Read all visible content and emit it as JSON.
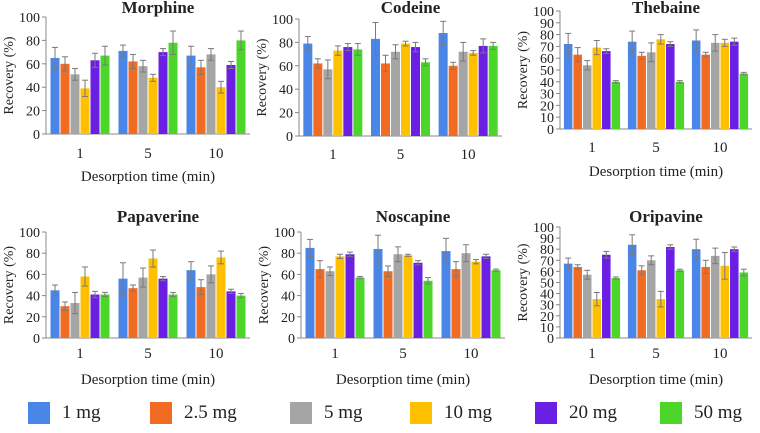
{
  "legend": [
    {
      "label": "1 mg",
      "color": "#4A86E8"
    },
    {
      "label": "2.5 mg",
      "color": "#F26B22"
    },
    {
      "label": "5 mg",
      "color": "#A5A5A5"
    },
    {
      "label": "10 mg",
      "color": "#FFC000"
    },
    {
      "label": "20 mg",
      "color": "#6A1FE3"
    },
    {
      "label": "50 mg",
      "color": "#4CD62A"
    }
  ],
  "chart_data": [
    {
      "type": "bar",
      "title": "Morphine",
      "xlabel": "Desorption time (min)",
      "ylabel": "Recovery (%)",
      "categories": [
        "1",
        "5",
        "10"
      ],
      "ylim": [
        0,
        100
      ],
      "yticks": [
        0,
        20,
        40,
        60,
        80,
        100
      ],
      "series": [
        {
          "name": "1 mg",
          "values": [
            65,
            71,
            67
          ],
          "errors": [
            9,
            5,
            8
          ]
        },
        {
          "name": "2.5 mg",
          "values": [
            60,
            62,
            57
          ],
          "errors": [
            6,
            6,
            6
          ]
        },
        {
          "name": "5 mg",
          "values": [
            51,
            58,
            68
          ],
          "errors": [
            5,
            5,
            5
          ]
        },
        {
          "name": "10 mg",
          "values": [
            39,
            48,
            40
          ],
          "errors": [
            7,
            3,
            5
          ]
        },
        {
          "name": "20 mg",
          "values": [
            63,
            70,
            59
          ],
          "errors": [
            6,
            3,
            3
          ]
        },
        {
          "name": "50 mg",
          "values": [
            67,
            78,
            80
          ],
          "errors": [
            8,
            10,
            8
          ]
        }
      ]
    },
    {
      "type": "bar",
      "title": "Codeine",
      "xlabel": "",
      "ylabel": "Recovery (%)",
      "categories": [
        "1",
        "5",
        "10"
      ],
      "ylim": [
        0,
        100
      ],
      "yticks": [
        0,
        20,
        40,
        60,
        80,
        100
      ],
      "series": [
        {
          "name": "1 mg",
          "values": [
            79,
            83,
            88
          ],
          "errors": [
            6,
            14,
            10
          ]
        },
        {
          "name": "2.5 mg",
          "values": [
            62,
            62,
            60
          ],
          "errors": [
            4,
            7,
            3
          ]
        },
        {
          "name": "5 mg",
          "values": [
            57,
            72,
            72
          ],
          "errors": [
            8,
            6,
            8
          ]
        },
        {
          "name": "10 mg",
          "values": [
            73,
            79,
            71
          ],
          "errors": [
            4,
            2,
            2
          ]
        },
        {
          "name": "20 mg",
          "values": [
            76,
            76,
            77
          ],
          "errors": [
            3,
            4,
            6
          ]
        },
        {
          "name": "50 mg",
          "values": [
            74,
            63,
            77
          ],
          "errors": [
            5,
            3,
            3
          ]
        }
      ]
    },
    {
      "type": "bar",
      "title": "Thebaine",
      "xlabel": "Desorption time (min)",
      "ylabel": "Recovery (%)",
      "categories": [
        "1",
        "5",
        "10"
      ],
      "ylim": [
        0,
        100
      ],
      "yticks": [
        0,
        10,
        20,
        30,
        40,
        50,
        60,
        70,
        80,
        90,
        100
      ],
      "series": [
        {
          "name": "1 mg",
          "values": [
            72,
            74,
            75
          ],
          "errors": [
            9,
            9,
            9
          ]
        },
        {
          "name": "2.5 mg",
          "values": [
            63,
            62,
            63
          ],
          "errors": [
            6,
            3,
            2
          ]
        },
        {
          "name": "5 mg",
          "values": [
            54,
            65,
            73
          ],
          "errors": [
            4,
            8,
            7
          ]
        },
        {
          "name": "10 mg",
          "values": [
            69,
            76,
            73
          ],
          "errors": [
            6,
            4,
            3
          ]
        },
        {
          "name": "20 mg",
          "values": [
            66,
            72,
            74
          ],
          "errors": [
            2,
            2,
            3
          ]
        },
        {
          "name": "50 mg",
          "values": [
            40,
            40,
            47
          ],
          "errors": [
            1,
            1,
            1
          ]
        }
      ]
    },
    {
      "type": "bar",
      "title": "Papaverine",
      "xlabel": "Desorption time (min)",
      "ylabel": "Recovery (%)",
      "categories": [
        "1",
        "5",
        "10"
      ],
      "ylim": [
        0,
        100
      ],
      "yticks": [
        0,
        20,
        40,
        60,
        80,
        100
      ],
      "series": [
        {
          "name": "1 mg",
          "values": [
            45,
            56,
            64
          ],
          "errors": [
            5,
            15,
            8
          ]
        },
        {
          "name": "2.5 mg",
          "values": [
            30,
            47,
            48
          ],
          "errors": [
            4,
            3,
            7
          ]
        },
        {
          "name": "5 mg",
          "values": [
            33,
            57,
            60
          ],
          "errors": [
            10,
            9,
            8
          ]
        },
        {
          "name": "10 mg",
          "values": [
            58,
            75,
            76
          ],
          "errors": [
            9,
            8,
            6
          ]
        },
        {
          "name": "20 mg",
          "values": [
            41,
            56,
            44
          ],
          "errors": [
            3,
            2,
            2
          ]
        },
        {
          "name": "50 mg",
          "values": [
            41,
            41,
            40
          ],
          "errors": [
            2,
            2,
            2
          ]
        }
      ]
    },
    {
      "type": "bar",
      "title": "Noscapine",
      "xlabel": "Desorption time (min)",
      "ylabel": "Recovery (%)",
      "categories": [
        "1",
        "5",
        "10"
      ],
      "ylim": [
        0,
        100
      ],
      "yticks": [
        0,
        20,
        40,
        60,
        80,
        100
      ],
      "series": [
        {
          "name": "1 mg",
          "values": [
            85,
            84,
            82
          ],
          "errors": [
            8,
            13,
            12
          ]
        },
        {
          "name": "2.5 mg",
          "values": [
            65,
            63,
            65
          ],
          "errors": [
            8,
            5,
            7
          ]
        },
        {
          "name": "5 mg",
          "values": [
            63,
            79,
            80
          ],
          "errors": [
            4,
            7,
            8
          ]
        },
        {
          "name": "10 mg",
          "values": [
            77,
            78,
            72
          ],
          "errors": [
            2,
            1,
            2
          ]
        },
        {
          "name": "20 mg",
          "values": [
            79,
            71,
            77
          ],
          "errors": [
            2,
            2,
            2
          ]
        },
        {
          "name": "50 mg",
          "values": [
            57,
            54,
            64
          ],
          "errors": [
            1,
            3,
            1
          ]
        }
      ]
    },
    {
      "type": "bar",
      "title": "Oripavine",
      "xlabel": "Desorption time (min)",
      "ylabel": "Recovery (%)",
      "categories": [
        "1",
        "5",
        "10"
      ],
      "ylim": [
        0,
        100
      ],
      "yticks": [
        0,
        10,
        20,
        30,
        40,
        50,
        60,
        70,
        80,
        90,
        100
      ],
      "series": [
        {
          "name": "1 mg",
          "values": [
            67,
            84,
            80
          ],
          "errors": [
            5,
            9,
            9
          ]
        },
        {
          "name": "2.5 mg",
          "values": [
            64,
            61,
            64
          ],
          "errors": [
            2,
            4,
            6
          ]
        },
        {
          "name": "5 mg",
          "values": [
            57,
            70,
            74
          ],
          "errors": [
            4,
            4,
            7
          ]
        },
        {
          "name": "10 mg",
          "values": [
            35,
            35,
            65
          ],
          "errors": [
            6,
            7,
            12
          ]
        },
        {
          "name": "20 mg",
          "values": [
            75,
            82,
            80
          ],
          "errors": [
            3,
            2,
            2
          ]
        },
        {
          "name": "50 mg",
          "values": [
            54,
            61,
            59
          ],
          "errors": [
            1,
            1,
            3
          ]
        }
      ]
    }
  ]
}
